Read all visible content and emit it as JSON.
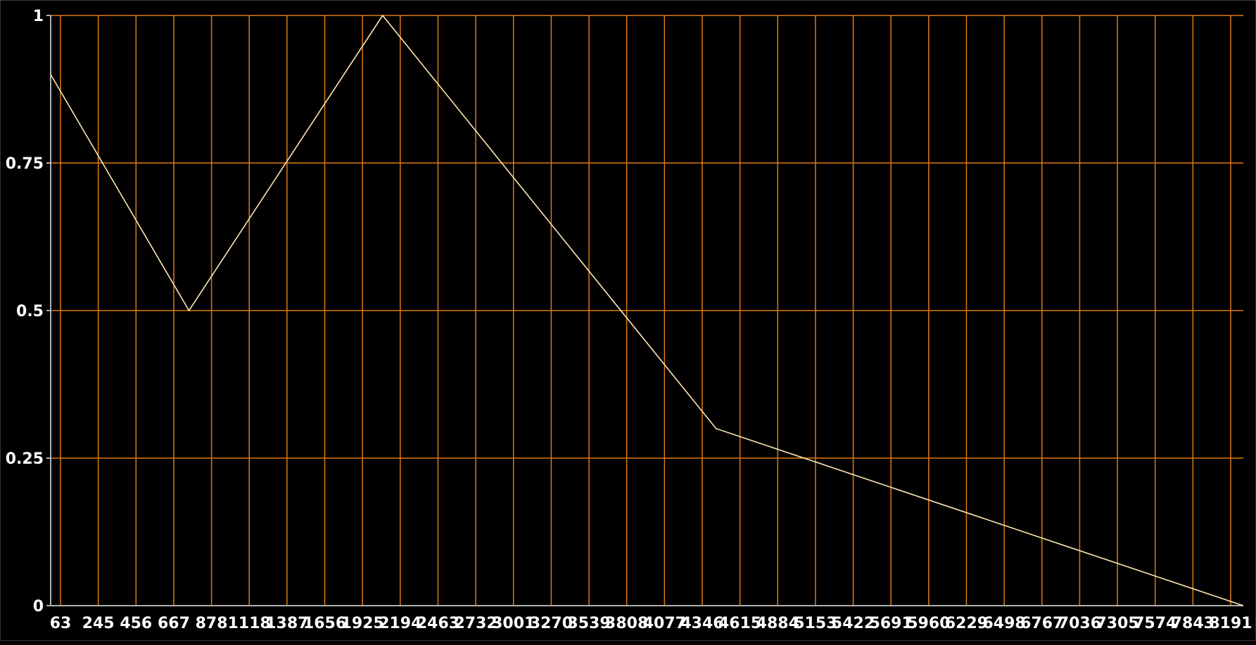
{
  "chart_data": {
    "type": "line",
    "title": "",
    "xlabel": "",
    "ylabel": "",
    "x_ticks": [
      63,
      245,
      456,
      667,
      878,
      1118,
      1387,
      1656,
      1925,
      2194,
      2463,
      2732,
      3001,
      3270,
      3539,
      3808,
      4077,
      4346,
      4615,
      4884,
      5153,
      5422,
      5691,
      5960,
      6229,
      6498,
      6767,
      7036,
      7305,
      7574,
      7843,
      8191
    ],
    "y_ticks": [
      0,
      0.25,
      0.5,
      0.75,
      1
    ],
    "xlim": [
      0,
      8191
    ],
    "ylim": [
      0,
      1
    ],
    "grid": true,
    "series": [
      {
        "x": [
          0,
          950,
          2280,
          4570,
          8191
        ],
        "y": [
          0.9,
          0.5,
          1.0,
          0.3,
          0.0
        ]
      }
    ],
    "colors": {
      "background": "#000000",
      "grid": "#e07a10",
      "line": "#ffe8b0",
      "text": "#ffffff"
    }
  }
}
